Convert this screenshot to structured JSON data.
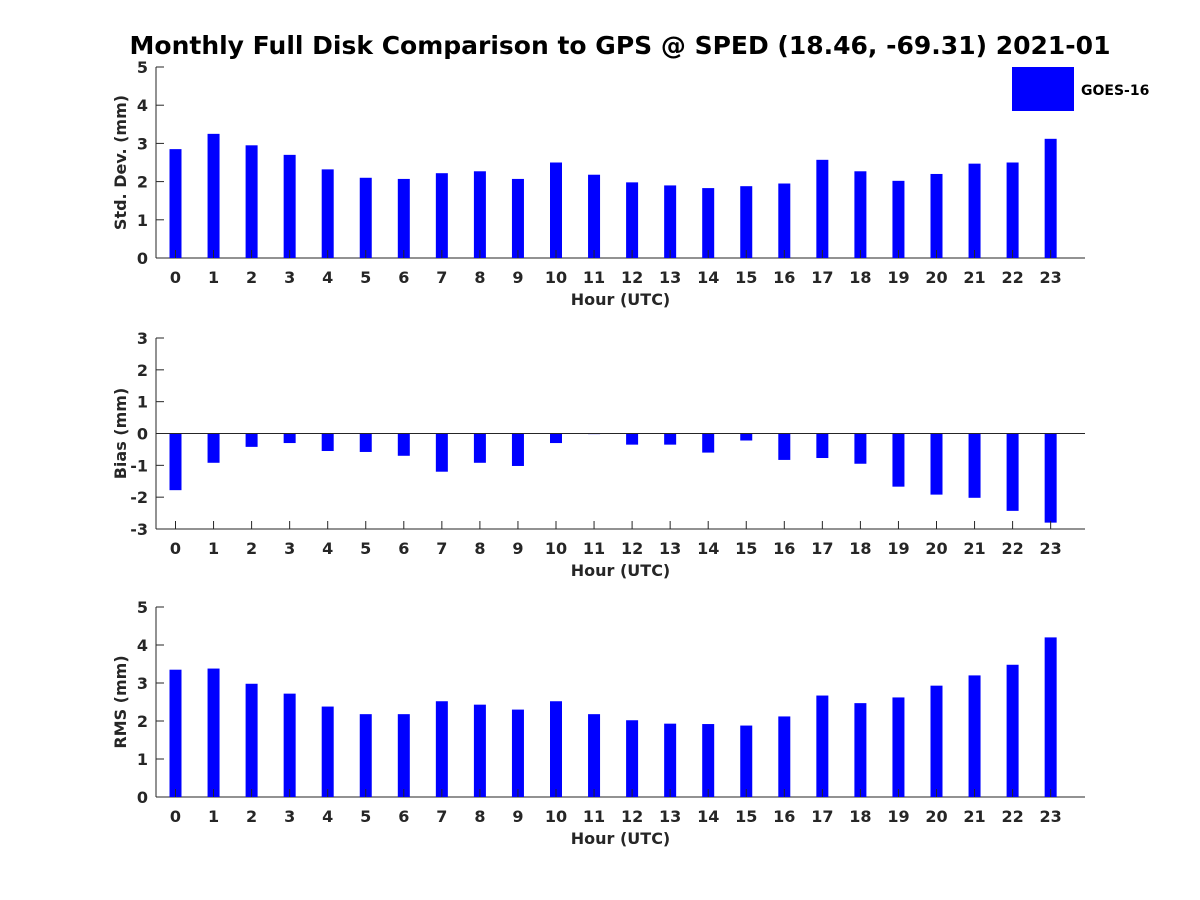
{
  "chart_data": [
    {
      "type": "bar",
      "title": "Monthly Full Disk Comparison to GPS @ SPED (18.46, -69.31) 2021-01",
      "xlabel": "Hour (UTC)",
      "ylabel": "Std. Dev. (mm)",
      "categories": [
        "0",
        "1",
        "2",
        "3",
        "4",
        "5",
        "6",
        "7",
        "8",
        "9",
        "10",
        "11",
        "12",
        "13",
        "14",
        "15",
        "16",
        "17",
        "18",
        "19",
        "20",
        "21",
        "22",
        "23"
      ],
      "series": [
        {
          "name": "GOES-16",
          "color": "#0000ff",
          "values": [
            2.85,
            3.25,
            2.95,
            2.7,
            2.32,
            2.1,
            2.07,
            2.22,
            2.27,
            2.07,
            2.5,
            2.18,
            1.98,
            1.9,
            1.83,
            1.88,
            1.95,
            2.57,
            2.27,
            2.02,
            2.2,
            2.47,
            2.5,
            3.12
          ]
        }
      ],
      "ylim": [
        0,
        5
      ],
      "yticks": [
        0,
        1,
        2,
        3,
        4,
        5
      ],
      "grid": false,
      "legend": "top-right"
    },
    {
      "type": "bar",
      "xlabel": "Hour (UTC)",
      "ylabel": "Bias (mm)",
      "categories": [
        "0",
        "1",
        "2",
        "3",
        "4",
        "5",
        "6",
        "7",
        "8",
        "9",
        "10",
        "11",
        "12",
        "13",
        "14",
        "15",
        "16",
        "17",
        "18",
        "19",
        "20",
        "21",
        "22",
        "23"
      ],
      "series": [
        {
          "name": "GOES-16",
          "color": "#0000ff",
          "values": [
            -1.78,
            -0.92,
            -0.42,
            -0.3,
            -0.55,
            -0.58,
            -0.7,
            -1.2,
            -0.92,
            -1.02,
            -0.3,
            -0.02,
            -0.35,
            -0.35,
            -0.6,
            -0.22,
            -0.83,
            -0.77,
            -0.95,
            -1.67,
            -1.92,
            -2.02,
            -2.43,
            -2.8
          ]
        }
      ],
      "ylim": [
        -3,
        3
      ],
      "yticks": [
        -3,
        -2,
        -1,
        0,
        1,
        2,
        3
      ],
      "zero_line": true,
      "grid": false
    },
    {
      "type": "bar",
      "xlabel": "Hour (UTC)",
      "ylabel": "RMS (mm)",
      "categories": [
        "0",
        "1",
        "2",
        "3",
        "4",
        "5",
        "6",
        "7",
        "8",
        "9",
        "10",
        "11",
        "12",
        "13",
        "14",
        "15",
        "16",
        "17",
        "18",
        "19",
        "20",
        "21",
        "22",
        "23"
      ],
      "series": [
        {
          "name": "GOES-16",
          "color": "#0000ff",
          "values": [
            3.35,
            3.38,
            2.98,
            2.72,
            2.38,
            2.18,
            2.18,
            2.52,
            2.43,
            2.3,
            2.52,
            2.18,
            2.02,
            1.93,
            1.92,
            1.88,
            2.12,
            2.67,
            2.47,
            2.62,
            2.93,
            3.2,
            3.48,
            4.2
          ]
        }
      ],
      "ylim": [
        0,
        5
      ],
      "yticks": [
        0,
        1,
        2,
        3,
        4,
        5
      ],
      "grid": false
    }
  ],
  "legend": {
    "label": "GOES-16",
    "color": "#0000ff"
  }
}
